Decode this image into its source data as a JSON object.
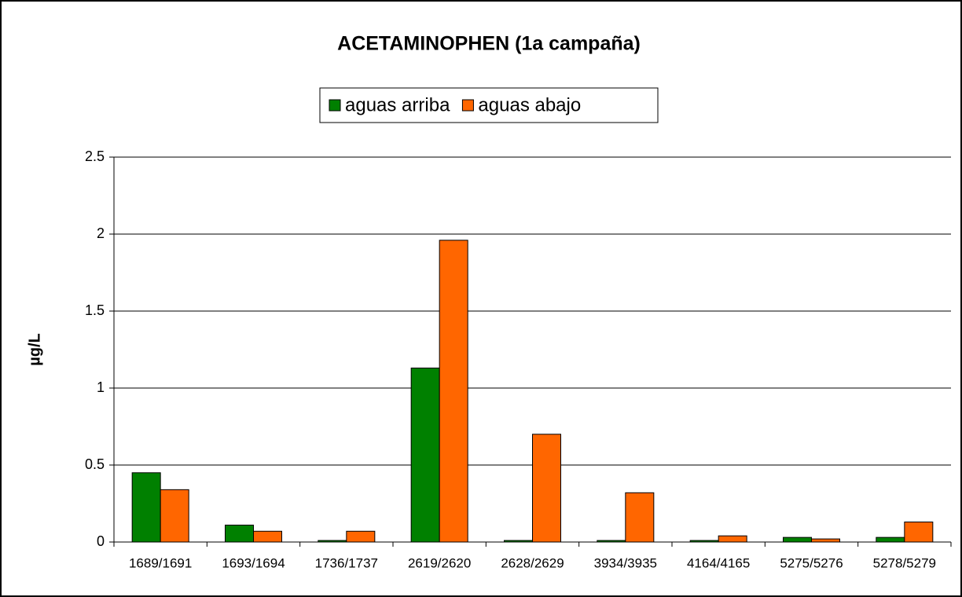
{
  "chart_data": {
    "type": "bar",
    "title": "ACETAMINOPHEN (1a campaña)",
    "y_label": "µg/L",
    "categories": [
      "1689/1691",
      "1693/1694",
      "1736/1737",
      "2619/2620",
      "2628/2629",
      "3934/3935",
      "4164/4165",
      "5275/5276",
      "5278/5279"
    ],
    "series": [
      {
        "name": "aguas arriba",
        "color": "#008000",
        "values": [
          0.45,
          0.11,
          0.01,
          1.13,
          0.01,
          0.01,
          0.01,
          0.03,
          0.03
        ]
      },
      {
        "name": "aguas abajo",
        "color": "#ff6600",
        "values": [
          0.34,
          0.07,
          0.07,
          1.96,
          0.7,
          0.32,
          0.04,
          0.02,
          0.13
        ]
      }
    ],
    "ylim": [
      0,
      2.5
    ],
    "yticks": [
      0,
      0.5,
      1,
      1.5,
      2,
      2.5
    ],
    "grid": true,
    "legend": "top"
  }
}
